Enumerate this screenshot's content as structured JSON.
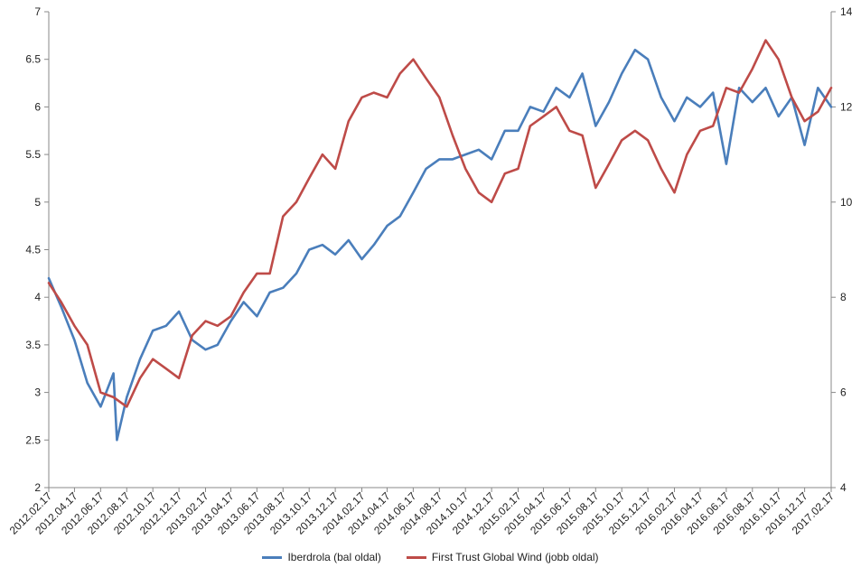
{
  "chart_data": {
    "type": "line",
    "title": "",
    "xlabel": "",
    "ylabel_left": "",
    "ylabel_right": "",
    "x_ticks": [
      "2012.02.17",
      "2012.04.17",
      "2012.06.17",
      "2012.08.17",
      "2012.10.17",
      "2012.12.17",
      "2013.02.17",
      "2013.04.17",
      "2013.06.17",
      "2013.08.17",
      "2013.10.17",
      "2013.12.17",
      "2014.02.17",
      "2014.04.17",
      "2014.06.17",
      "2014.08.17",
      "2014.10.17",
      "2014.12.17",
      "2015.02.17",
      "2015.04.17",
      "2015.06.17",
      "2015.08.17",
      "2015.10.17",
      "2015.12.17",
      "2016.02.17",
      "2016.04.17",
      "2016.06.17",
      "2016.08.17",
      "2016.10.17",
      "2016.12.17",
      "2017.02.17"
    ],
    "y_left": {
      "ylim": [
        2,
        7
      ],
      "ticks": [
        "2",
        "2.5",
        "3",
        "3.5",
        "4",
        "4.5",
        "5",
        "5.5",
        "6",
        "6.5",
        "7"
      ]
    },
    "y_right": {
      "ylim": [
        4,
        14
      ],
      "ticks": [
        "4",
        "6",
        "8",
        "10",
        "12",
        "14"
      ]
    },
    "grid": false,
    "legend_position": "bottom",
    "series": [
      {
        "name": "Iberdrola (bal oldal)",
        "axis": "left",
        "color": "#4a7ebb",
        "x": [
          "2012.02.17",
          "2012.03.17",
          "2012.04.17",
          "2012.05.17",
          "2012.06.17",
          "2012.07.17",
          "2012.07.25",
          "2012.08.17",
          "2012.09.17",
          "2012.10.17",
          "2012.11.17",
          "2012.12.17",
          "2013.01.17",
          "2013.02.17",
          "2013.03.17",
          "2013.04.17",
          "2013.05.17",
          "2013.06.17",
          "2013.07.17",
          "2013.08.17",
          "2013.09.17",
          "2013.10.17",
          "2013.11.17",
          "2013.12.17",
          "2014.01.17",
          "2014.02.17",
          "2014.03.17",
          "2014.04.17",
          "2014.05.17",
          "2014.06.17",
          "2014.07.17",
          "2014.08.17",
          "2014.09.17",
          "2014.10.17",
          "2014.11.17",
          "2014.12.17",
          "2015.01.17",
          "2015.02.17",
          "2015.03.17",
          "2015.04.17",
          "2015.05.17",
          "2015.06.17",
          "2015.07.17",
          "2015.08.17",
          "2015.09.17",
          "2015.10.17",
          "2015.11.17",
          "2015.12.17",
          "2016.01.17",
          "2016.02.17",
          "2016.03.17",
          "2016.04.17",
          "2016.05.17",
          "2016.06.17",
          "2016.07.17",
          "2016.08.17",
          "2016.09.17",
          "2016.10.17",
          "2016.11.17",
          "2016.12.17",
          "2017.01.17",
          "2017.02.17"
        ],
        "values": [
          4.2,
          3.9,
          3.55,
          3.1,
          2.85,
          3.2,
          2.5,
          2.95,
          3.35,
          3.65,
          3.7,
          3.85,
          3.55,
          3.45,
          3.5,
          3.75,
          3.95,
          3.8,
          4.05,
          4.1,
          4.25,
          4.5,
          4.55,
          4.45,
          4.6,
          4.4,
          4.55,
          4.75,
          4.85,
          5.1,
          5.35,
          5.45,
          5.45,
          5.5,
          5.55,
          5.45,
          5.75,
          5.75,
          6.0,
          5.95,
          6.2,
          6.1,
          6.35,
          5.8,
          6.05,
          6.35,
          6.6,
          6.5,
          6.1,
          5.85,
          6.1,
          6.0,
          6.15,
          5.4,
          6.2,
          6.05,
          6.2,
          5.9,
          6.1,
          5.6,
          6.2,
          6.0
        ]
      },
      {
        "name": "First Trust Global Wind (jobb oldal)",
        "axis": "right",
        "color": "#be4b48",
        "x": [
          "2012.02.17",
          "2012.03.17",
          "2012.04.17",
          "2012.05.17",
          "2012.06.17",
          "2012.07.17",
          "2012.08.17",
          "2012.09.17",
          "2012.10.17",
          "2012.11.17",
          "2012.12.17",
          "2013.01.17",
          "2013.02.17",
          "2013.03.17",
          "2013.04.17",
          "2013.05.17",
          "2013.06.17",
          "2013.07.17",
          "2013.08.17",
          "2013.09.17",
          "2013.10.17",
          "2013.11.17",
          "2013.12.17",
          "2014.01.17",
          "2014.02.17",
          "2014.03.17",
          "2014.04.17",
          "2014.05.17",
          "2014.06.17",
          "2014.07.17",
          "2014.08.17",
          "2014.09.17",
          "2014.10.17",
          "2014.11.17",
          "2014.12.17",
          "2015.01.17",
          "2015.02.17",
          "2015.03.17",
          "2015.04.17",
          "2015.05.17",
          "2015.06.17",
          "2015.07.17",
          "2015.08.17",
          "2015.09.17",
          "2015.10.17",
          "2015.11.17",
          "2015.12.17",
          "2016.01.17",
          "2016.02.17",
          "2016.03.17",
          "2016.04.17",
          "2016.05.17",
          "2016.06.17",
          "2016.07.17",
          "2016.08.17",
          "2016.09.17",
          "2016.10.17",
          "2016.11.17",
          "2016.12.17",
          "2017.01.17",
          "2017.02.17"
        ],
        "values": [
          8.3,
          7.9,
          7.4,
          7.0,
          6.0,
          5.9,
          5.7,
          6.3,
          6.7,
          6.5,
          6.3,
          7.2,
          7.5,
          7.4,
          7.6,
          8.1,
          8.5,
          8.5,
          9.7,
          10.0,
          10.5,
          11.0,
          10.7,
          11.7,
          12.2,
          12.3,
          12.2,
          12.7,
          13.0,
          12.6,
          12.2,
          11.4,
          10.7,
          10.2,
          10.0,
          10.6,
          10.7,
          11.6,
          11.8,
          12.0,
          11.5,
          11.4,
          10.3,
          10.8,
          11.3,
          11.5,
          11.3,
          10.7,
          10.2,
          11.0,
          11.5,
          11.6,
          12.4,
          12.3,
          12.8,
          13.4,
          13.0,
          12.2,
          11.7,
          11.9,
          12.4
        ]
      }
    ]
  }
}
